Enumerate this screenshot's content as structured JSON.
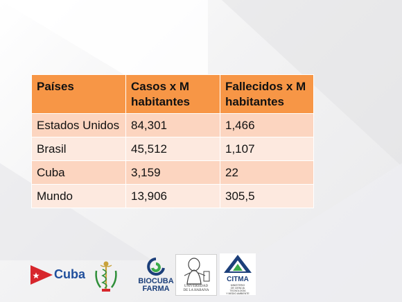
{
  "table": {
    "headers": [
      "Países",
      "Casos x M habitantes",
      "Fallecidos x M habitantes"
    ],
    "rows": [
      [
        "Estados Unidos",
        "84,301",
        "1,466"
      ],
      [
        "Brasil",
        "45,512",
        "1,107"
      ],
      [
        "Cuba",
        "3,159",
        "22"
      ],
      [
        "Mundo",
        "13,906",
        "305,5"
      ]
    ]
  },
  "logos": {
    "cuba": "Cuba",
    "biocuba_line1": "BIOCUBA",
    "biocuba_line2": "FARMA",
    "uh_line1": "UNIVERSIDAD",
    "uh_line2": "DE LA HABANA",
    "citma": "CITMA",
    "citma_sub1": "MINISTERIO",
    "citma_sub2": "DE CIENCIA",
    "citma_sub3": "TECNOLOGÍA",
    "citma_sub4": "Y MEDIO AMBIENTE"
  },
  "colors": {
    "header": "#f79646",
    "row_odd": "#fcd5c0",
    "row_even": "#fde9df"
  }
}
